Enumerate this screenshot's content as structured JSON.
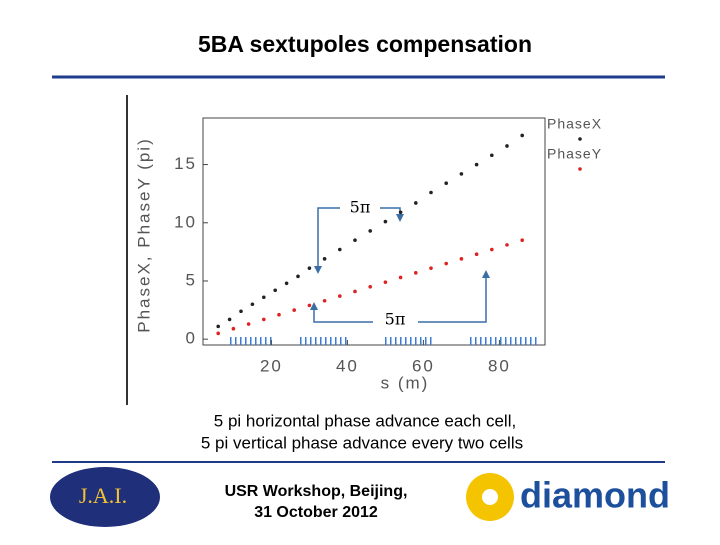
{
  "header": {
    "title": "5BA sextupoles compensation"
  },
  "chart_data": {
    "type": "scatter",
    "x_label": "s (m)",
    "y_label": "PhaseX, PhaseY (pi)",
    "annotations": [
      "5π",
      "5π"
    ],
    "xlim": [
      2,
      92
    ],
    "ylim": [
      -0.5,
      19
    ],
    "xticks": [
      20,
      40,
      60,
      80
    ],
    "yticks": [
      0,
      5,
      10,
      15
    ],
    "series": [
      {
        "name": "PhaseX",
        "color": "#222222",
        "x": [
          6,
          9,
          12,
          15,
          18,
          21,
          24,
          27,
          30,
          34,
          38,
          42,
          46,
          50,
          54,
          58,
          62,
          66,
          70,
          74,
          78,
          82,
          86
        ],
        "values": [
          1.1,
          1.7,
          2.4,
          3.0,
          3.6,
          4.2,
          4.8,
          5.4,
          6.1,
          6.9,
          7.7,
          8.5,
          9.3,
          10.1,
          10.9,
          11.7,
          12.6,
          13.4,
          14.2,
          15.0,
          15.8,
          16.6,
          17.5
        ]
      },
      {
        "name": "PhaseY",
        "color": "#dd2222",
        "x": [
          6,
          10,
          14,
          18,
          22,
          26,
          30,
          34,
          38,
          42,
          46,
          50,
          54,
          58,
          62,
          66,
          70,
          74,
          78,
          82,
          86
        ],
        "values": [
          0.5,
          0.9,
          1.3,
          1.7,
          2.1,
          2.5,
          2.9,
          3.3,
          3.7,
          4.1,
          4.5,
          4.9,
          5.3,
          5.7,
          6.1,
          6.5,
          6.9,
          7.3,
          7.7,
          8.1,
          8.5
        ]
      }
    ]
  },
  "caption": [
    "5 pi horizontal phase advance each cell,",
    "5 pi vertical phase advance every two cells"
  ],
  "footer": {
    "event": "USR Workshop, Beijing,",
    "date": "31 October 2012"
  },
  "logos": {
    "jai": "J.A.I.",
    "diamond": "diamond"
  }
}
